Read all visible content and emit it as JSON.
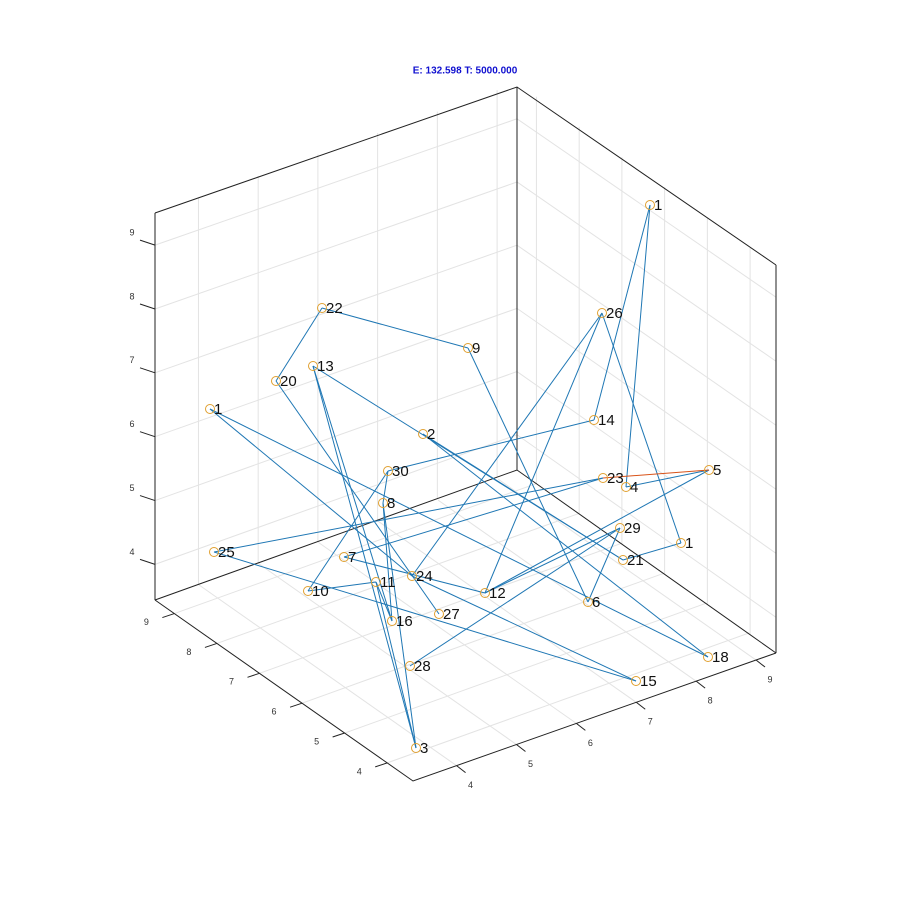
{
  "title": "E: 132.598 T: 5000.000",
  "axes": {
    "x": {
      "ticks": [
        4,
        5,
        6,
        7,
        8,
        9
      ]
    },
    "y": {
      "ticks": [
        4,
        5,
        6,
        7,
        8,
        9
      ]
    },
    "z": {
      "ticks": [
        4,
        5,
        6,
        7,
        8,
        9
      ]
    }
  },
  "nodes": [
    {
      "label": "1"
    },
    {
      "label": "26"
    },
    {
      "label": "22"
    },
    {
      "label": "9"
    },
    {
      "label": "13"
    },
    {
      "label": "20"
    },
    {
      "label": "1"
    },
    {
      "label": "14"
    },
    {
      "label": "2"
    },
    {
      "label": "30"
    },
    {
      "label": "23"
    },
    {
      "label": "4"
    },
    {
      "label": "5"
    },
    {
      "label": "8"
    },
    {
      "label": "29"
    },
    {
      "label": "1"
    },
    {
      "label": "25"
    },
    {
      "label": "7"
    },
    {
      "label": "21"
    },
    {
      "label": "24"
    },
    {
      "label": "11"
    },
    {
      "label": "10"
    },
    {
      "label": "12"
    },
    {
      "label": "6"
    },
    {
      "label": "16"
    },
    {
      "label": "27"
    },
    {
      "label": "18"
    },
    {
      "label": "28"
    },
    {
      "label": "15"
    },
    {
      "label": "3"
    }
  ]
}
